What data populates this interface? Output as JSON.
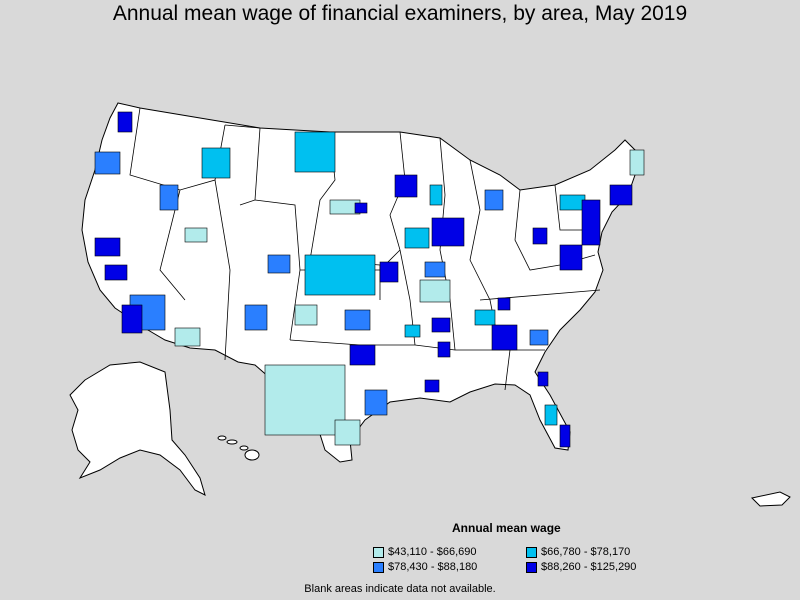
{
  "title": "Annual mean wage of financial examiners, by area, May 2019",
  "legend": {
    "title": "Annual mean wage",
    "items": [
      {
        "label": "$43,110 - $66,690",
        "color": "#b2ebeb"
      },
      {
        "label": "$66,780 - $78,170",
        "color": "#00c0f0"
      },
      {
        "label": "$78,430 - $88,180",
        "color": "#2a7fff"
      },
      {
        "label": "$88,260 - $125,290",
        "color": "#0000e6"
      }
    ]
  },
  "footnote": "Blank areas indicate data not available.",
  "colors": {
    "background": "#d9d9d9",
    "land": "#ffffff",
    "border": "#000000"
  }
}
